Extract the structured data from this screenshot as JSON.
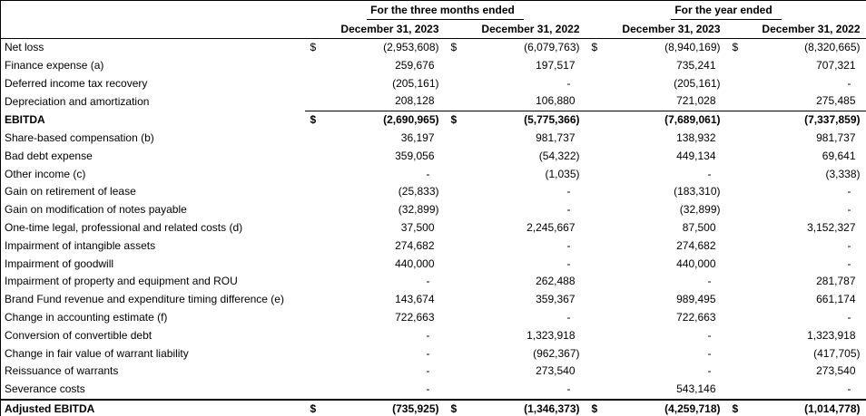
{
  "table": {
    "currency": "$",
    "period_groups": [
      "For the three months ended",
      "For the year ended"
    ],
    "columns": [
      "December 31, 2023",
      "December 31, 2022",
      "December 31, 2023",
      "December 31, 2022"
    ],
    "rows": [
      {
        "label": "Net loss",
        "dollar": [
          true,
          true,
          true,
          true
        ],
        "values": [
          "(2,953,608)",
          "(6,079,763)",
          "(8,940,169)",
          "(8,320,665)"
        ]
      },
      {
        "label": "Finance expense (a)",
        "values": [
          "259,676",
          "197,517",
          "735,241",
          "707,321"
        ]
      },
      {
        "label": "Deferred income tax recovery",
        "values": [
          "(205,161)",
          "-",
          "(205,161)",
          "-"
        ]
      },
      {
        "label": "Depreciation and amortization",
        "values": [
          "208,128",
          "106,880",
          "721,028",
          "275,485"
        ]
      },
      {
        "label": "EBITDA",
        "bold": true,
        "rule": "numbers",
        "dollar": [
          true,
          true,
          false,
          false
        ],
        "values": [
          "(2,690,965)",
          "(5,775,366)",
          "(7,689,061)",
          "(7,337,859)"
        ]
      },
      {
        "label": "Share-based compensation (b)",
        "values": [
          "36,197",
          "981,737",
          "138,932",
          "981,737"
        ]
      },
      {
        "label": "Bad debt expense",
        "values": [
          "359,056",
          "(54,322)",
          "449,134",
          "69,641"
        ]
      },
      {
        "label": "Other income (c)",
        "values": [
          "-",
          "(1,035)",
          "-",
          "(3,338)"
        ]
      },
      {
        "label": "Gain on retirement of lease",
        "values": [
          "(25,833)",
          "-",
          "(183,310)",
          "-"
        ]
      },
      {
        "label": "Gain on modification of notes payable",
        "values": [
          "(32,899)",
          "-",
          "(32,899)",
          "-"
        ]
      },
      {
        "label": "One-time legal, professional and related costs (d)",
        "values": [
          "37,500",
          "2,245,667",
          "87,500",
          "3,152,327"
        ]
      },
      {
        "label": "Impairment of intangible assets",
        "values": [
          "274,682",
          "-",
          "274,682",
          "-"
        ]
      },
      {
        "label": "Impairment of goodwill",
        "values": [
          "440,000",
          "-",
          "440,000",
          "-"
        ]
      },
      {
        "label": "Impairment of property and equipment and ROU",
        "values": [
          "-",
          "262,488",
          "-",
          "281,787"
        ]
      },
      {
        "label": "Brand Fund revenue and expenditure timing difference (e)",
        "values": [
          "143,674",
          "359,367",
          "989,495",
          "661,174"
        ]
      },
      {
        "label": "Change in accounting estimate (f)",
        "values": [
          "722,663",
          "-",
          "722,663",
          "-"
        ]
      },
      {
        "label": "Conversion of convertible debt",
        "values": [
          "-",
          "1,323,918",
          "-",
          "1,323,918"
        ]
      },
      {
        "label": "Change in fair value of warrant liability",
        "values": [
          "-",
          "(962,367)",
          "-",
          "(417,705)"
        ]
      },
      {
        "label": "Reissuance of warrants",
        "values": [
          "-",
          "273,540",
          "-",
          "273,540"
        ]
      },
      {
        "label": "Severance costs",
        "values": [
          "-",
          "-",
          "543,146",
          "-"
        ]
      },
      {
        "label": "Adjusted EBITDA",
        "bold": true,
        "rule": "full",
        "dollar": [
          true,
          true,
          true,
          true
        ],
        "values": [
          "(735,925)",
          "(1,346,373)",
          "(4,259,718)",
          "(1,014,778)"
        ]
      }
    ]
  }
}
